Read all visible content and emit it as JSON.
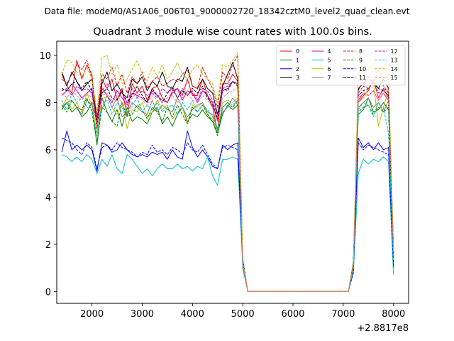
{
  "figure": {
    "suptitle": "Data file: modeM0/AS1A06_006T01_9000002720_18342cztM0_level2_quad_clean.evt",
    "title": "Quadrant 3 module wise count rates with 100.0s bins.",
    "x_offset_label": "+2.8817e8"
  },
  "chart_data": {
    "type": "line",
    "title": "Quadrant 3 module wise count rates with 100.0s bins.",
    "xlabel": "",
    "ylabel": "",
    "x_offset": 288170000,
    "xlim": [
      1300,
      8300
    ],
    "ylim": [
      -0.5,
      10.6
    ],
    "xticks": [
      2000,
      3000,
      4000,
      5000,
      6000,
      7000,
      8000
    ],
    "yticks": [
      0,
      2,
      4,
      6,
      8,
      10
    ],
    "grid": false,
    "legend_position": "top-right",
    "legend_columns": 4,
    "x": [
      1400,
      1500,
      1600,
      1700,
      1800,
      1900,
      2000,
      2100,
      2200,
      2300,
      2400,
      2500,
      2600,
      2700,
      2800,
      2900,
      3000,
      3100,
      3200,
      3300,
      3400,
      3500,
      3600,
      3700,
      3800,
      3900,
      4000,
      4100,
      4200,
      4300,
      4400,
      4500,
      4600,
      4700,
      4800,
      4900,
      5000,
      5100,
      7100,
      7200,
      7300,
      7400,
      7500,
      7600,
      7700,
      7800,
      7900,
      8000
    ],
    "series": [
      {
        "name": "0",
        "color": "#ff0000",
        "dash": "solid",
        "values": [
          9.2,
          8.7,
          8.4,
          9.8,
          9.0,
          9.6,
          9.2,
          7.1,
          9.0,
          8.6,
          9.0,
          8.1,
          8.6,
          7.4,
          8.8,
          8.4,
          8.7,
          8.1,
          8.6,
          8.7,
          8.2,
          8.0,
          8.5,
          8.6,
          8.3,
          9.0,
          8.3,
          8.3,
          9.0,
          8.3,
          7.8,
          6.8,
          8.8,
          8.8,
          9.2,
          8.9,
          1.0,
          0,
          0,
          1.0,
          8.0,
          8.3,
          8.5,
          9.0,
          8.2,
          8.6,
          8.2,
          1.5
        ]
      },
      {
        "name": "1",
        "color": "#008000",
        "dash": "solid",
        "values": [
          7.7,
          8.0,
          7.6,
          7.8,
          7.4,
          7.6,
          8.0,
          6.2,
          8.2,
          7.6,
          7.2,
          7.7,
          7.0,
          7.8,
          7.2,
          7.4,
          7.3,
          7.1,
          7.6,
          7.8,
          7.1,
          7.4,
          7.0,
          7.5,
          7.8,
          7.2,
          7.5,
          7.4,
          7.7,
          7.4,
          7.2,
          6.7,
          7.5,
          7.9,
          7.7,
          7.9,
          1.2,
          0,
          0,
          1.2,
          7.5,
          7.7,
          8.2,
          7.6,
          7.7,
          8.0,
          7.7,
          1.3
        ]
      },
      {
        "name": "2",
        "color": "#0000ff",
        "dash": "solid",
        "values": [
          5.9,
          6.8,
          6.0,
          6.2,
          6.0,
          6.2,
          6.0,
          5.1,
          6.3,
          6.2,
          5.9,
          6.0,
          6.3,
          6.0,
          5.8,
          5.7,
          5.8,
          5.7,
          5.9,
          5.8,
          5.9,
          5.6,
          6.0,
          5.7,
          5.6,
          6.8,
          6.1,
          5.7,
          6.0,
          5.7,
          5.3,
          5.2,
          6.2,
          6.0,
          6.2,
          6.3,
          1.4,
          0,
          0,
          0.9,
          6.5,
          6.1,
          6.3,
          6.0,
          6.3,
          6.0,
          6.1,
          1.0
        ]
      },
      {
        "name": "3",
        "color": "#000000",
        "dash": "solid",
        "values": [
          9.3,
          8.7,
          9.3,
          8.9,
          8.5,
          8.8,
          9.0,
          7.2,
          8.8,
          9.3,
          8.5,
          8.8,
          8.4,
          8.2,
          9.0,
          8.8,
          9.1,
          8.5,
          8.9,
          8.7,
          9.3,
          8.7,
          8.6,
          9.0,
          8.9,
          9.5,
          8.7,
          8.6,
          9.0,
          8.6,
          8.4,
          7.5,
          8.7,
          9.2,
          9.7,
          9.0,
          1.2,
          0,
          0,
          1.1,
          8.6,
          8.8,
          9.1,
          8.8,
          8.6,
          9.0,
          8.6,
          1.8
        ]
      },
      {
        "name": "4",
        "color": "#bf00bf",
        "dash": "solid",
        "values": [
          8.3,
          8.5,
          8.8,
          8.5,
          8.2,
          8.4,
          8.6,
          6.9,
          8.6,
          8.3,
          8.0,
          8.5,
          8.2,
          7.9,
          8.4,
          8.3,
          8.2,
          8.0,
          8.5,
          8.3,
          8.1,
          8.0,
          8.4,
          8.6,
          8.1,
          8.5,
          8.4,
          8.0,
          8.5,
          8.3,
          8.0,
          7.2,
          8.5,
          8.6,
          8.9,
          8.8,
          1.1,
          0,
          0,
          1.1,
          8.1,
          8.4,
          8.3,
          8.5,
          8.1,
          8.4,
          8.1,
          1.6
        ]
      },
      {
        "name": "5",
        "color": "#00bfbf",
        "dash": "solid",
        "values": [
          5.8,
          5.7,
          5.5,
          5.7,
          5.5,
          5.8,
          5.6,
          5.0,
          5.6,
          5.3,
          5.8,
          5.2,
          5.0,
          5.8,
          5.6,
          5.3,
          5.0,
          5.2,
          4.9,
          5.2,
          5.4,
          5.2,
          5.2,
          5.4,
          5.2,
          5.3,
          5.1,
          5.3,
          5.2,
          5.7,
          4.9,
          4.5,
          5.6,
          5.6,
          5.7,
          5.6,
          1.0,
          0,
          0,
          0.8,
          5.0,
          5.6,
          5.4,
          5.6,
          5.5,
          5.7,
          5.5,
          0.7
        ]
      },
      {
        "name": "6",
        "color": "#bfbf00",
        "dash": "solid",
        "values": [
          7.8,
          8.2,
          7.7,
          8.0,
          7.6,
          8.4,
          7.9,
          6.7,
          8.1,
          8.3,
          7.8,
          7.5,
          8.0,
          6.9,
          7.7,
          7.6,
          8.0,
          7.4,
          7.6,
          8.1,
          7.7,
          7.9,
          7.3,
          7.6,
          7.8,
          7.1,
          7.9,
          7.8,
          8.0,
          7.5,
          7.3,
          6.8,
          8.0,
          8.1,
          8.0,
          8.2,
          1.3,
          0,
          0,
          1.0,
          8.0,
          8.2,
          8.6,
          8.9,
          7.0,
          7.8,
          8.6,
          1.6
        ]
      },
      {
        "name": "7",
        "color": "#808080",
        "dash": "solid",
        "values": [
          7.8,
          8.0,
          8.1,
          7.8,
          7.5,
          8.1,
          7.9,
          7.2,
          7.7,
          8.3,
          7.8,
          8.2,
          7.4,
          7.6,
          8.0,
          7.8,
          7.6,
          7.5,
          8.1,
          7.6,
          7.9,
          7.7,
          7.6,
          8.2,
          7.8,
          7.4,
          7.7,
          7.9,
          8.0,
          7.6,
          7.5,
          6.9,
          7.6,
          7.8,
          8.2,
          7.9,
          1.2,
          0,
          0,
          1.2,
          7.8,
          8.0,
          8.2,
          7.8,
          8.0,
          7.6,
          8.1,
          1.5
        ]
      },
      {
        "name": "8",
        "color": "#ff0000",
        "dash": "dashed",
        "values": [
          9.0,
          8.8,
          9.2,
          9.6,
          9.4,
          9.8,
          9.0,
          7.4,
          9.2,
          9.0,
          9.5,
          8.7,
          9.2,
          8.4,
          9.1,
          8.8,
          9.3,
          8.6,
          8.9,
          9.1,
          8.7,
          8.8,
          9.0,
          8.9,
          9.2,
          9.4,
          8.7,
          8.6,
          9.5,
          9.0,
          8.6,
          7.8,
          9.3,
          9.0,
          9.6,
          10.0,
          1.3,
          0,
          0,
          1.1,
          8.5,
          9.0,
          9.1,
          8.8,
          9.4,
          8.7,
          8.4,
          1.7
        ]
      },
      {
        "name": "9",
        "color": "#008000",
        "dash": "dashed",
        "values": [
          7.9,
          7.6,
          8.1,
          7.8,
          7.7,
          8.2,
          7.6,
          6.3,
          7.8,
          7.6,
          7.2,
          7.0,
          8.0,
          7.4,
          7.5,
          7.9,
          7.7,
          7.3,
          7.8,
          7.6,
          7.2,
          7.8,
          7.4,
          7.9,
          7.5,
          7.1,
          7.8,
          7.6,
          7.9,
          7.5,
          7.2,
          6.6,
          7.8,
          8.0,
          7.8,
          8.1,
          1.2,
          0,
          0,
          1.1,
          7.6,
          7.8,
          7.9,
          7.5,
          7.8,
          7.6,
          7.8,
          1.4
        ]
      },
      {
        "name": "10",
        "color": "#0000ff",
        "dash": "dashed",
        "values": [
          6.5,
          6.4,
          6.3,
          6.0,
          5.8,
          6.3,
          6.1,
          5.2,
          6.1,
          6.2,
          6.0,
          6.3,
          6.1,
          6.0,
          5.9,
          5.7,
          5.9,
          5.8,
          6.2,
          5.9,
          6.0,
          5.8,
          6.1,
          6.0,
          5.8,
          6.3,
          6.0,
          5.9,
          6.2,
          5.8,
          5.4,
          5.2,
          6.1,
          6.2,
          6.1,
          6.0,
          1.3,
          0,
          0,
          0.8,
          6.3,
          6.0,
          6.2,
          6.1,
          6.0,
          5.9,
          5.8,
          1.1
        ]
      },
      {
        "name": "11",
        "color": "#000000",
        "dash": "dashed",
        "values": [
          8.6,
          8.5,
          8.8,
          8.9,
          8.6,
          8.9,
          8.5,
          7.0,
          8.4,
          8.6,
          8.2,
          8.1,
          8.5,
          8.0,
          8.3,
          8.7,
          8.3,
          8.0,
          8.6,
          8.3,
          8.0,
          8.4,
          8.6,
          8.2,
          8.5,
          8.3,
          8.6,
          8.4,
          8.7,
          8.2,
          7.9,
          7.3,
          8.6,
          8.5,
          8.9,
          8.7,
          1.2,
          0,
          0,
          1.2,
          8.3,
          8.5,
          8.6,
          8.9,
          8.6,
          8.5,
          8.3,
          1.6
        ]
      },
      {
        "name": "12",
        "color": "#bf00bf",
        "dash": "dashed",
        "values": [
          8.5,
          8.6,
          8.3,
          8.7,
          8.5,
          8.6,
          8.4,
          7.2,
          8.5,
          8.8,
          8.6,
          8.5,
          8.4,
          8.0,
          8.6,
          8.2,
          8.5,
          8.3,
          8.4,
          8.2,
          8.6,
          8.4,
          8.7,
          8.2,
          8.6,
          8.3,
          8.5,
          8.1,
          8.6,
          8.5,
          8.1,
          7.4,
          8.6,
          8.7,
          8.9,
          8.8,
          1.1,
          0,
          0,
          1.1,
          8.4,
          8.7,
          8.6,
          8.9,
          8.4,
          8.5,
          8.6,
          1.7
        ]
      },
      {
        "name": "13",
        "color": "#00bfbf",
        "dash": "dashed",
        "values": [
          8.1,
          7.7,
          8.4,
          8.0,
          8.2,
          7.8,
          7.7,
          6.6,
          7.9,
          8.1,
          7.5,
          8.0,
          7.8,
          7.4,
          7.9,
          8.2,
          7.6,
          7.9,
          7.7,
          8.0,
          7.6,
          7.8,
          7.9,
          7.5,
          8.0,
          7.7,
          8.1,
          7.6,
          7.9,
          7.7,
          7.4,
          6.8,
          7.8,
          8.0,
          7.9,
          8.1,
          1.1,
          0,
          0,
          1.0,
          7.7,
          8.0,
          7.9,
          7.4,
          8.0,
          7.8,
          6.7,
          1.3
        ]
      },
      {
        "name": "14",
        "color": "#bfbf00",
        "dash": "dashed",
        "values": [
          9.2,
          9.8,
          9.7,
          9.3,
          9.1,
          9.5,
          9.0,
          7.6,
          9.9,
          10.0,
          9.2,
          9.6,
          8.8,
          9.0,
          9.4,
          9.8,
          9.2,
          8.9,
          9.5,
          9.1,
          9.6,
          9.0,
          9.3,
          9.7,
          9.2,
          9.0,
          9.4,
          9.6,
          9.2,
          9.0,
          8.8,
          8.0,
          9.6,
          9.5,
          9.8,
          10.1,
          1.4,
          0,
          0,
          1.3,
          9.3,
          9.6,
          9.4,
          9.7,
          9.0,
          9.5,
          9.2,
          1.8
        ]
      },
      {
        "name": "15",
        "color": "#ff7f7f",
        "dash": "dashed",
        "values": [
          8.4,
          8.2,
          8.5,
          8.3,
          8.1,
          8.4,
          8.2,
          7.0,
          8.3,
          8.4,
          8.1,
          8.3,
          8.0,
          7.8,
          8.2,
          8.4,
          8.1,
          7.9,
          8.3,
          8.1,
          8.0,
          8.2,
          8.3,
          8.0,
          8.2,
          8.4,
          8.1,
          8.0,
          8.3,
          8.1,
          7.8,
          7.2,
          8.2,
          8.4,
          8.5,
          8.6,
          1.2,
          0,
          0,
          1.1,
          8.2,
          8.4,
          8.3,
          8.5,
          8.1,
          8.4,
          8.2,
          1.6
        ]
      }
    ]
  }
}
